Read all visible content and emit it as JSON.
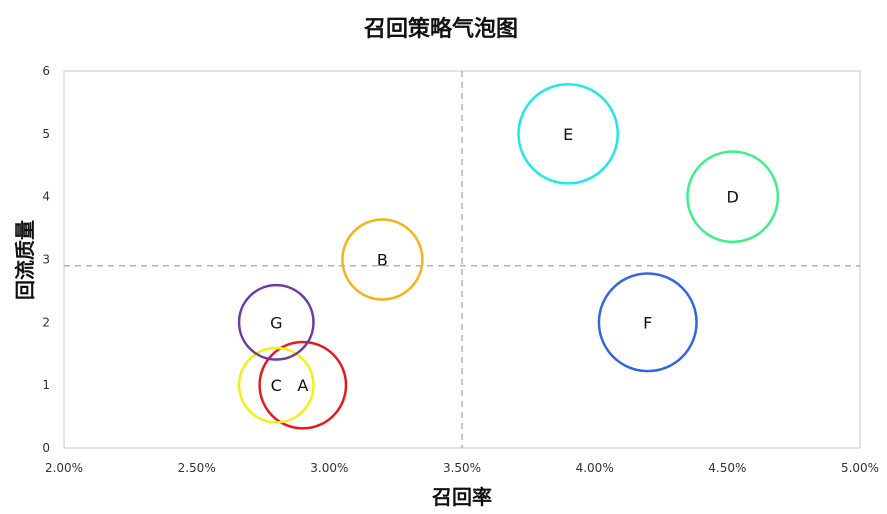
{
  "chart_data": {
    "type": "scatter",
    "subtype": "bubble",
    "title": "召回策略气泡图",
    "xlabel": "召回率",
    "ylabel": "回流质量",
    "xlim": [
      0.02,
      0.05
    ],
    "ylim": [
      0,
      6
    ],
    "x_ticks": [
      "2.00%",
      "2.50%",
      "3.00%",
      "3.50%",
      "4.00%",
      "4.50%",
      "5.00%"
    ],
    "y_ticks": [
      "0",
      "1",
      "2",
      "3",
      "4",
      "5",
      "6"
    ],
    "grid": false,
    "reference_lines": {
      "x": 0.035,
      "y": 2.9
    },
    "points": [
      {
        "label": "A",
        "x": 0.029,
        "y": 1.0,
        "size": 1.08,
        "color": "#e8191a"
      },
      {
        "label": "B",
        "x": 0.032,
        "y": 3.0,
        "size": 1.0,
        "color": "#f5b21b"
      },
      {
        "label": "C",
        "x": 0.028,
        "y": 1.0,
        "size": 0.93,
        "color": "#f5f00f"
      },
      {
        "label": "D",
        "x": 0.0452,
        "y": 4.0,
        "size": 1.13,
        "color": "#3df08a"
      },
      {
        "label": "E",
        "x": 0.039,
        "y": 5.0,
        "size": 1.24,
        "color": "#1fe8ea"
      },
      {
        "label": "F",
        "x": 0.042,
        "y": 2.0,
        "size": 1.22,
        "color": "#3366e6"
      },
      {
        "label": "G",
        "x": 0.028,
        "y": 2.0,
        "size": 0.93,
        "color": "#6f3aa2"
      }
    ]
  }
}
